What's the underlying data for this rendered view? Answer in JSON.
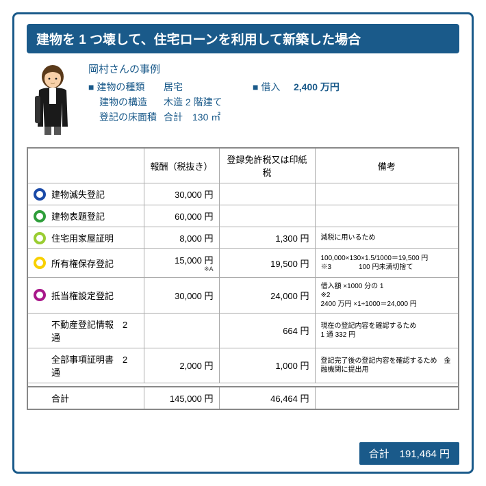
{
  "title": "建物を 1 つ壊して、住宅ローンを利用して新築した場合",
  "case": {
    "name": "岡村さんの事例",
    "building_type_label": "建物の種類",
    "building_type": "居宅",
    "structure_label": "建物の構造",
    "structure": "木造 2 階建て",
    "floor_label": "登記の床面積",
    "floor": "合計　130 ㎡",
    "loan_label": "借入",
    "loan": "2,400 万円"
  },
  "headers": {
    "col1": "",
    "col2": "報酬（税抜き）",
    "col3": "登録免許税又は印紙税",
    "col4": "備考"
  },
  "rows": [
    {
      "ring": "#1a4aa8",
      "label": "建物滅失登記",
      "fee": "30,000 円",
      "tax": "",
      "note": ""
    },
    {
      "ring": "#2e9e3a",
      "label": "建物表題登記",
      "fee": "60,000 円",
      "tax": "",
      "note": ""
    },
    {
      "ring": "#9acd32",
      "label": "住宅用家屋証明",
      "fee": "8,000 円",
      "tax": "1,300 円",
      "note": "減税に用いるため"
    },
    {
      "ring": "#f8d000",
      "label": "所有権保存登記",
      "fee": "15,000 円",
      "fee_sub": "※A",
      "tax": "19,500 円",
      "note": "100,000×130×1.5/1000＝19,500 円\n※3　　　　100 円未満切捨て"
    },
    {
      "ring": "#a8188a",
      "label": "抵当権設定登記",
      "fee": "30,000 円",
      "tax": "24,000 円",
      "note": "借入額 ×1000 分の 1\n※2\n2400 万円 ×1÷1000＝24,000 円"
    }
  ],
  "extra": [
    {
      "label": "不動産登記情報　2 通",
      "fee": "",
      "tax": "664 円",
      "note": "現在の登記内容を確認するため\n1 通 332 円"
    },
    {
      "label": "全部事項証明書　2 通",
      "fee": "2,000 円",
      "tax": "1,000 円",
      "note": "登記完了後の登記内容を確認するため　金融機関に提出用"
    }
  ],
  "sum": {
    "label": "合計",
    "fee": "145,000 円",
    "tax": "46,464 円"
  },
  "grand": {
    "label": "合計",
    "value": "191,464 円"
  },
  "avatar": {
    "hair": "#5a3a1a",
    "skin": "#f8d0a8",
    "jacket": "#1a1a1a",
    "shirt": "#fff"
  }
}
